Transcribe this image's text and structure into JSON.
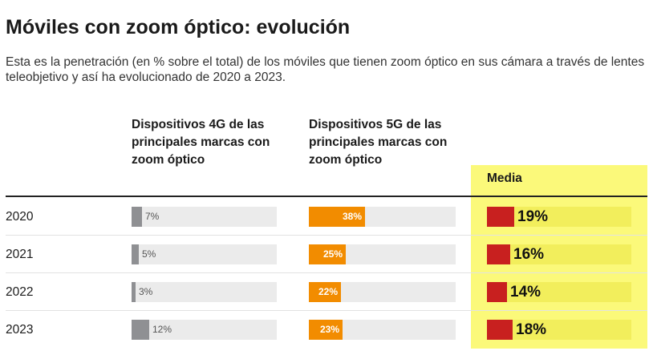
{
  "header": {
    "title": "Móviles con zoom óptico: evolución",
    "subtitle": "Esta es la penetración (en % sobre el total) de los móviles que tienen zoom óptico en sus cámara a través de lentes teleobjetivo y así ha evolucionado de 2020 a 2023."
  },
  "colors": {
    "gray": "#8f9093",
    "orange": "#f28c00",
    "red": "#c8201f",
    "highlight": "#fbf97a",
    "track": "#ebebeb"
  },
  "chart_data": {
    "type": "bar",
    "orientation": "horizontal",
    "categories": [
      "2020",
      "2021",
      "2022",
      "2023"
    ],
    "series": [
      {
        "name": "Dispositivos 4G de las principales marcas con zoom óptico",
        "values": [
          7,
          5,
          3,
          12
        ],
        "labels": [
          "7%",
          "5%",
          "3%",
          "12%"
        ]
      },
      {
        "name": "Dispositivos 5G de las principales marcas con zoom óptico",
        "values": [
          38,
          25,
          22,
          23
        ],
        "labels": [
          "38%",
          "25%",
          "22%",
          "23%"
        ]
      },
      {
        "name": "Media",
        "values": [
          19,
          16,
          14,
          18
        ],
        "labels": [
          "19%",
          "16%",
          "14%",
          "18%"
        ]
      }
    ],
    "xlim": [
      0,
      100
    ]
  }
}
